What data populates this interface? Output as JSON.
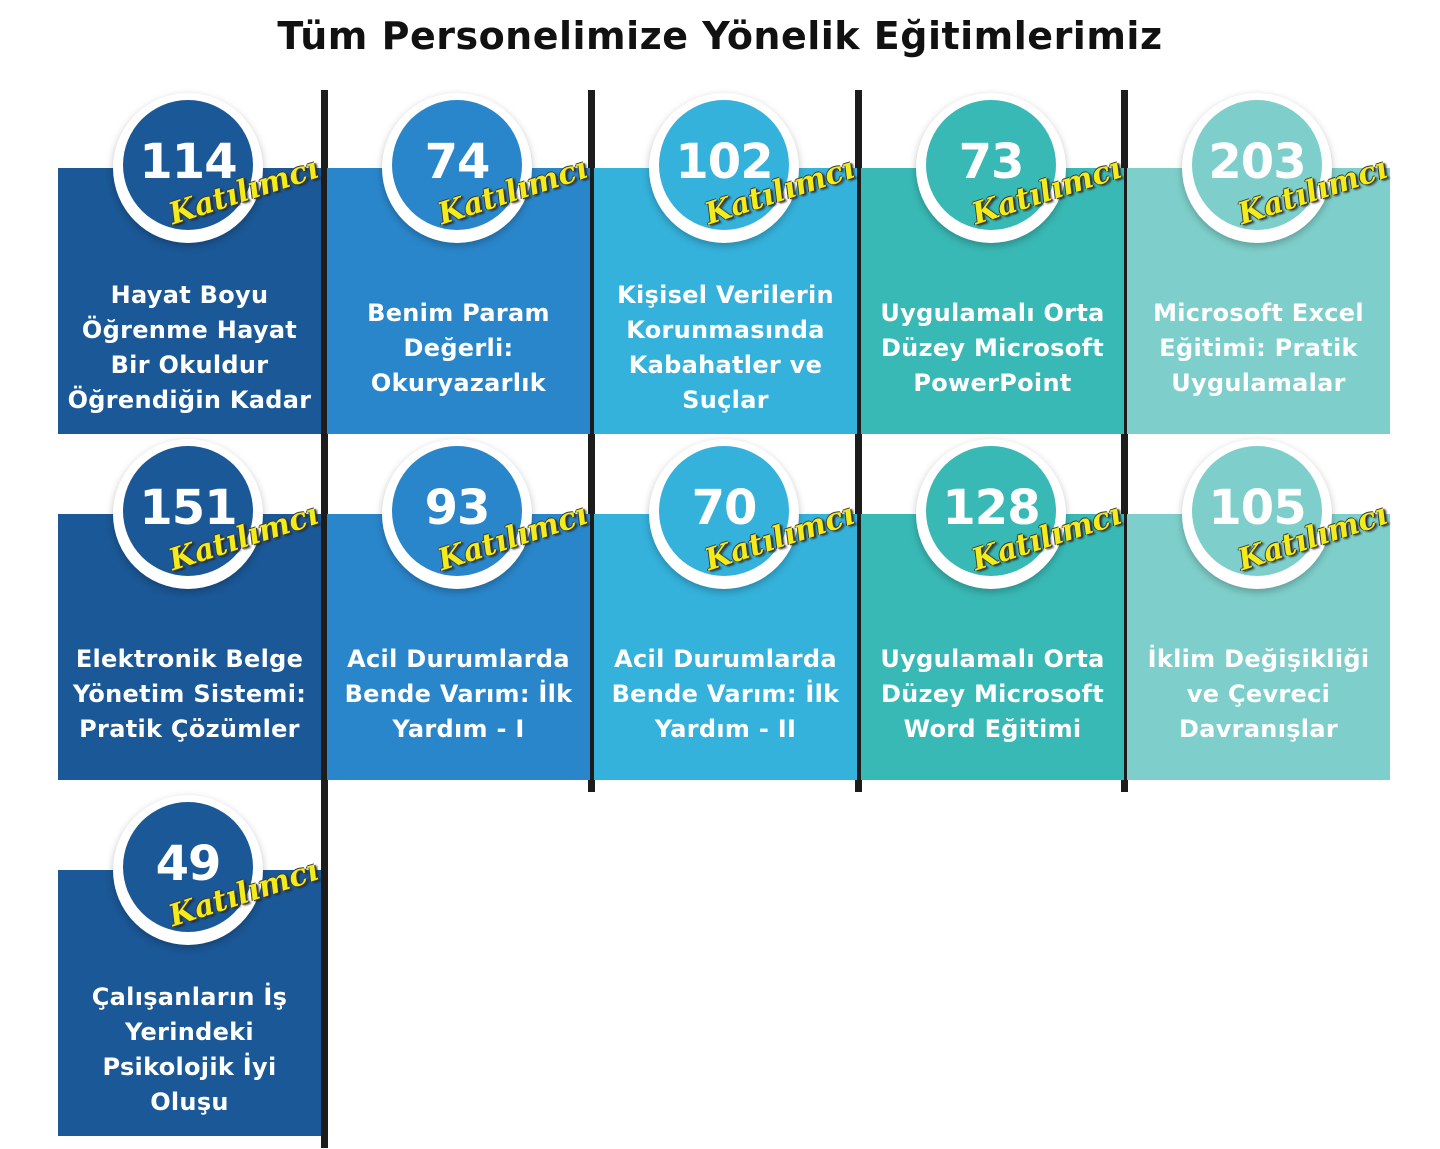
{
  "page": {
    "title": "Tüm Personelimize Yönelik Eğitimlerimiz"
  },
  "participant_label": "Katılımcı",
  "trainings": [
    {
      "count": "114",
      "title": "Hayat Boyu Öğrenme Hayat Bir Okuldur Öğrendiğin Kadar"
    },
    {
      "count": "74",
      "title": "Benim Param Değerli: Okuryazarlık"
    },
    {
      "count": "102",
      "title": "Kişisel Verilerin Korunmasında Kabahatler ve Suçlar"
    },
    {
      "count": "73",
      "title": "Uygulamalı Orta Düzey Microsoft PowerPoint"
    },
    {
      "count": "203",
      "title": "Microsoft Excel Eğitimi: Pratik Uygulamalar"
    },
    {
      "count": "151",
      "title": "Elektronik Belge Yönetim Sistemi: Pratik Çözümler"
    },
    {
      "count": "93",
      "title": "Acil Durumlarda Bende Varım: İlk Yardım - I"
    },
    {
      "count": "70",
      "title": "Acil Durumlarda Bende Varım: İlk Yardım - II"
    },
    {
      "count": "128",
      "title": "Uygulamalı Orta Düzey Microsoft Word Eğitimi"
    },
    {
      "count": "105",
      "title": "İklim Değişikliği ve Çevreci Davranışlar"
    },
    {
      "count": "49",
      "title": "Çalışanların İş Yerindeki Psikolojik İyi Oluşu"
    }
  ]
}
